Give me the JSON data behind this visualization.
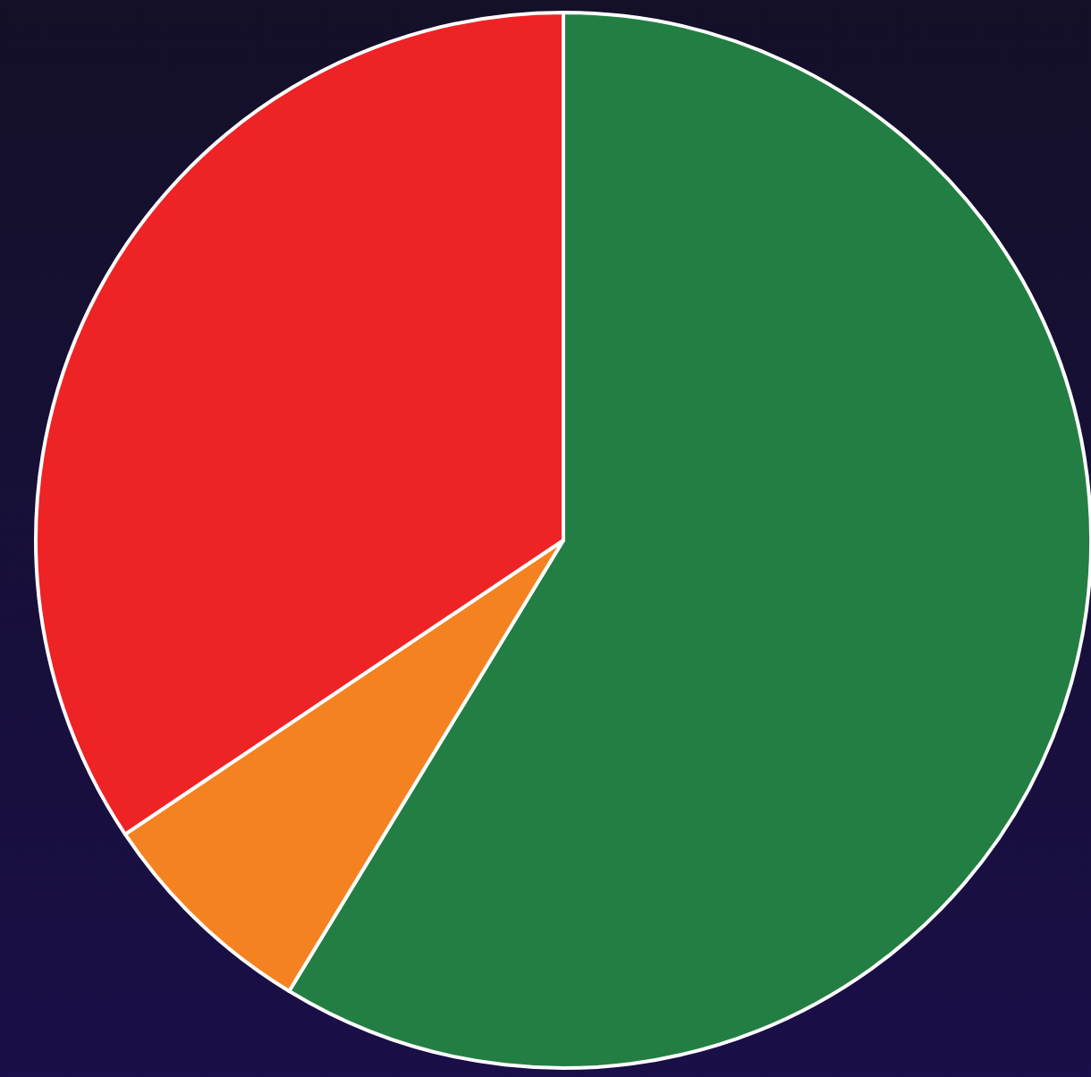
{
  "chart_data": {
    "type": "pie",
    "categories": [
      null,
      null,
      null
    ],
    "values": [
      58.7,
      6.9,
      34.4
    ],
    "colors": [
      "#237e43",
      "#f58220",
      "#ee2326"
    ]
  }
}
